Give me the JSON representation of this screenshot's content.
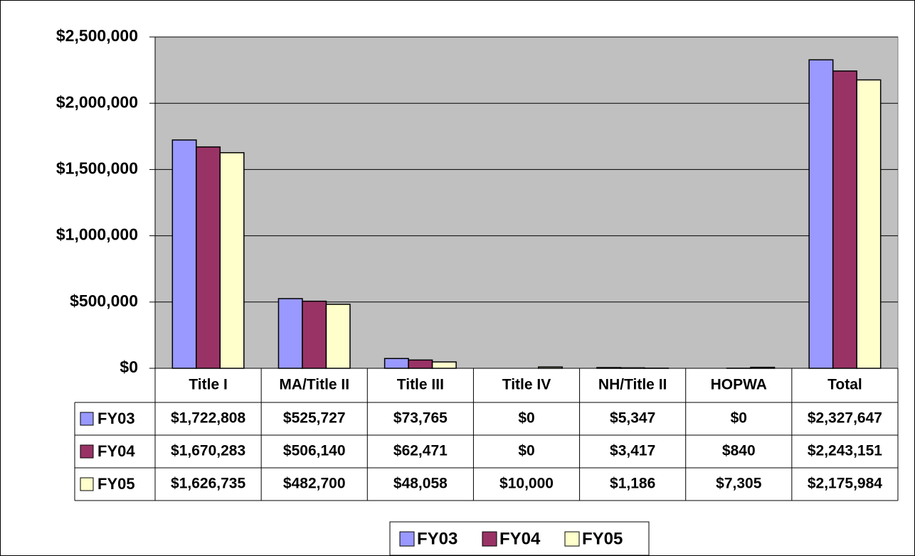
{
  "chart_data": {
    "type": "bar",
    "categories": [
      "Title I",
      "MA/Title II",
      "Title III",
      "Title IV",
      "NH/Title II",
      "HOPWA",
      "Total"
    ],
    "series": [
      {
        "name": "FY03",
        "color": "#9999ff",
        "values": [
          1722808,
          525727,
          73765,
          0,
          5347,
          0,
          2327647
        ],
        "value_labels": [
          "$1,722,808",
          "$525,727",
          "$73,765",
          "$0",
          "$5,347",
          "$0",
          "$2,327,647"
        ]
      },
      {
        "name": "FY04",
        "color": "#993366",
        "values": [
          1670283,
          506140,
          62471,
          0,
          3417,
          840,
          2243151
        ],
        "value_labels": [
          "$1,670,283",
          "$506,140",
          "$62,471",
          "$0",
          "$3,417",
          "$840",
          "$2,243,151"
        ]
      },
      {
        "name": "FY05",
        "color": "#ffffcc",
        "values": [
          1626735,
          482700,
          48058,
          10000,
          1186,
          7305,
          2175984
        ],
        "value_labels": [
          "$1,626,735",
          "$482,700",
          "$48,058",
          "$10,000",
          "$1,186",
          "$7,305",
          "$2,175,984"
        ]
      }
    ],
    "ylim": [
      0,
      2500000
    ],
    "yticks": [
      {
        "value": 0,
        "label": "$0"
      },
      {
        "value": 500000,
        "label": "$500,000"
      },
      {
        "value": 1000000,
        "label": "$1,000,000"
      },
      {
        "value": 1500000,
        "label": "$1,500,000"
      },
      {
        "value": 2000000,
        "label": "$2,000,000"
      },
      {
        "value": 2500000,
        "label": "$2,500,000"
      }
    ],
    "grid": true,
    "plot_background": "#c0c0c0",
    "legend": "bottom"
  }
}
